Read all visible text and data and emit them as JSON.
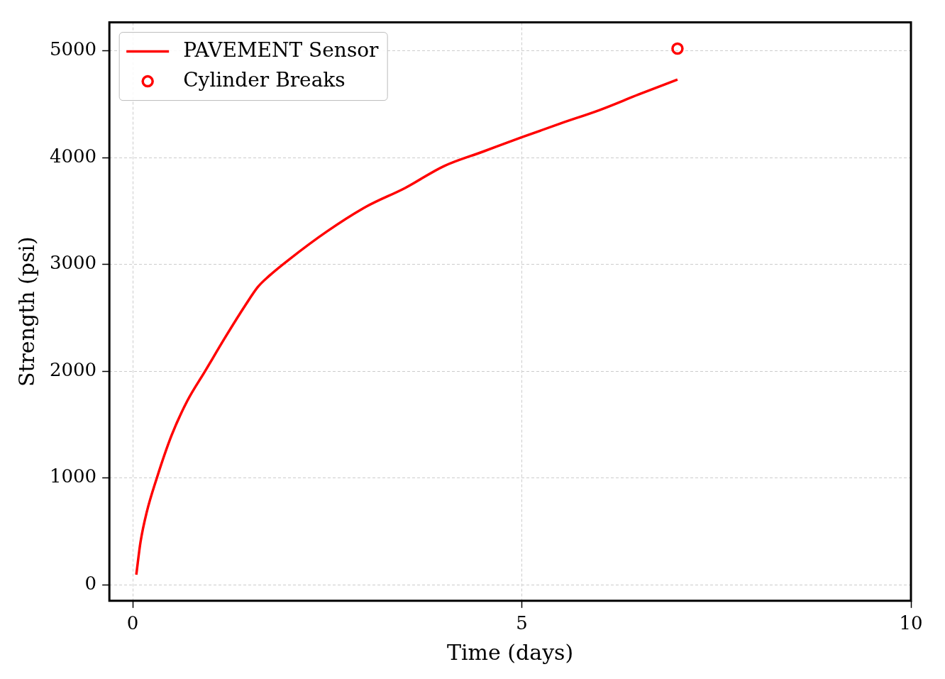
{
  "chart_data": {
    "type": "line",
    "xlabel": "Time (days)",
    "ylabel": "Strength (psi)",
    "xlim": [
      -0.3,
      10
    ],
    "ylim": [
      -150,
      5265
    ],
    "xticks": [
      0,
      5,
      10
    ],
    "yticks": [
      0,
      1000,
      2000,
      3000,
      4000,
      5000
    ],
    "grid": true,
    "legend": "top left",
    "series": [
      {
        "name": "PAVEMENT Sensor",
        "type": "line",
        "color": "#ff0000",
        "marker": "none",
        "line_style": "solid",
        "x": [
          0.046,
          0.1,
          0.18,
          0.31,
          0.5,
          0.7,
          0.93,
          1.2,
          1.45,
          1.61,
          1.75,
          2.0,
          2.5,
          3.0,
          3.5,
          4.0,
          4.5,
          5.0,
          5.5,
          6.0,
          6.5,
          7.0
        ],
        "values": [
          95,
          400,
          680,
          1000,
          1400,
          1720,
          2000,
          2330,
          2620,
          2790,
          2890,
          3040,
          3310,
          3540,
          3715,
          3920,
          4055,
          4190,
          4320,
          4445,
          4590,
          4730
        ]
      },
      {
        "name": "Cylinder Breaks",
        "type": "scatter",
        "color": "#ff0000",
        "marker": "circle",
        "x": [
          7.0
        ],
        "values": [
          5020
        ]
      }
    ]
  }
}
